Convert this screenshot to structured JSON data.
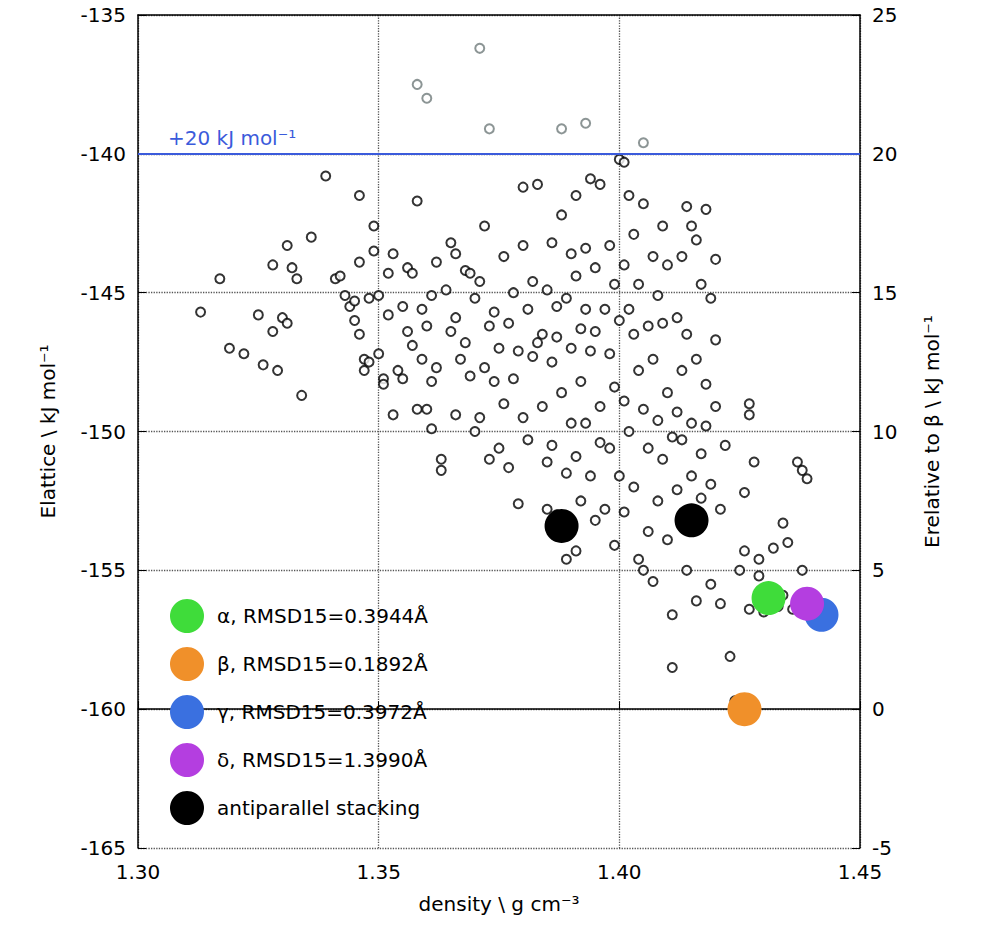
{
  "chart_data": {
    "type": "scatter",
    "x_label": "density \\ g cm⁻³",
    "y_label": "Elattice \\ kJ mol⁻¹",
    "y2_label": "Erelative to β \\ kJ mol⁻¹",
    "xlim": [
      1.3,
      1.45
    ],
    "xticks": [
      {
        "value": 1.3,
        "label": "1.30"
      },
      {
        "value": 1.35,
        "label": "1.35"
      },
      {
        "value": 1.4,
        "label": "1.40"
      },
      {
        "value": 1.45,
        "label": "1.45"
      }
    ],
    "ylim": [
      -165,
      -135
    ],
    "yticks": [
      -165,
      -160,
      -155,
      -150,
      -145,
      -140,
      -135
    ],
    "y2lim": [
      -5,
      25
    ],
    "y2ticks": [
      -5,
      0,
      5,
      10,
      15,
      20,
      25
    ],
    "grid": true,
    "legend": "lower left",
    "reference_lines": [
      {
        "y": -140,
        "label": "+20 kJ mol⁻¹",
        "color": "#3b5bdb"
      }
    ],
    "series": [
      {
        "color": "#000000",
        "marker": "open",
        "values": [
          [
            1.313,
            -145.7
          ],
          [
            1.317,
            -144.5
          ],
          [
            1.319,
            -147.0
          ],
          [
            1.322,
            -147.2
          ],
          [
            1.325,
            -145.8
          ],
          [
            1.326,
            -147.6
          ],
          [
            1.328,
            -146.4
          ],
          [
            1.328,
            -144.0
          ],
          [
            1.329,
            -147.8
          ],
          [
            1.33,
            -145.9
          ],
          [
            1.331,
            -146.1
          ],
          [
            1.331,
            -143.3
          ],
          [
            1.332,
            -144.1
          ],
          [
            1.333,
            -144.5
          ],
          [
            1.334,
            -148.7
          ],
          [
            1.336,
            -143.0
          ],
          [
            1.339,
            -140.8
          ],
          [
            1.341,
            -144.5
          ],
          [
            1.342,
            -144.4
          ],
          [
            1.343,
            -145.1
          ],
          [
            1.344,
            -145.5
          ],
          [
            1.345,
            -146.0
          ],
          [
            1.345,
            -145.3
          ],
          [
            1.346,
            -141.5
          ],
          [
            1.346,
            -143.9
          ],
          [
            1.346,
            -146.5
          ],
          [
            1.347,
            -147.4
          ],
          [
            1.347,
            -147.8
          ],
          [
            1.348,
            -147.5
          ],
          [
            1.348,
            -145.2
          ],
          [
            1.349,
            -143.5
          ],
          [
            1.349,
            -142.6
          ],
          [
            1.35,
            -145.1
          ],
          [
            1.35,
            -147.2
          ],
          [
            1.351,
            -148.1
          ],
          [
            1.351,
            -148.3
          ],
          [
            1.352,
            -144.3
          ],
          [
            1.352,
            -145.8
          ],
          [
            1.353,
            -143.6
          ],
          [
            1.353,
            -149.4
          ],
          [
            1.354,
            -147.8
          ],
          [
            1.355,
            -148.1
          ],
          [
            1.355,
            -145.5
          ],
          [
            1.356,
            -144.1
          ],
          [
            1.356,
            -146.4
          ],
          [
            1.357,
            -144.3
          ],
          [
            1.357,
            -146.9
          ],
          [
            1.358,
            -141.7
          ],
          [
            1.358,
            -149.2
          ],
          [
            1.359,
            -147.4
          ],
          [
            1.359,
            -145.6
          ],
          [
            1.36,
            -149.2
          ],
          [
            1.36,
            -146.2
          ],
          [
            1.361,
            -145.1
          ],
          [
            1.361,
            -148.2
          ],
          [
            1.361,
            -149.9
          ],
          [
            1.362,
            -143.9
          ],
          [
            1.362,
            -147.7
          ],
          [
            1.363,
            -151.0
          ],
          [
            1.363,
            -151.4
          ],
          [
            1.364,
            -144.9
          ],
          [
            1.365,
            -143.2
          ],
          [
            1.365,
            -146.4
          ],
          [
            1.366,
            -143.6
          ],
          [
            1.366,
            -145.9
          ],
          [
            1.366,
            -149.4
          ],
          [
            1.367,
            -147.4
          ],
          [
            1.368,
            -144.2
          ],
          [
            1.368,
            -146.8
          ],
          [
            1.369,
            -144.3
          ],
          [
            1.369,
            -148.0
          ],
          [
            1.37,
            -150.0
          ],
          [
            1.37,
            -145.2
          ],
          [
            1.371,
            -144.6
          ],
          [
            1.371,
            -149.5
          ],
          [
            1.372,
            -142.6
          ],
          [
            1.372,
            -147.7
          ],
          [
            1.373,
            -146.2
          ],
          [
            1.373,
            -151.0
          ],
          [
            1.374,
            -148.2
          ],
          [
            1.374,
            -145.7
          ],
          [
            1.375,
            -147.0
          ],
          [
            1.375,
            -150.6
          ],
          [
            1.376,
            -143.7
          ],
          [
            1.376,
            -149.0
          ],
          [
            1.377,
            -146.1
          ],
          [
            1.377,
            -151.3
          ],
          [
            1.378,
            -145.0
          ],
          [
            1.378,
            -148.1
          ],
          [
            1.379,
            -147.1
          ],
          [
            1.379,
            -152.6
          ],
          [
            1.38,
            -143.3
          ],
          [
            1.38,
            -149.5
          ],
          [
            1.38,
            -141.2
          ],
          [
            1.381,
            -145.6
          ],
          [
            1.381,
            -150.3
          ],
          [
            1.382,
            -147.3
          ],
          [
            1.382,
            -144.6
          ],
          [
            1.383,
            -141.1
          ],
          [
            1.383,
            -146.8
          ],
          [
            1.384,
            -146.5
          ],
          [
            1.384,
            -149.1
          ],
          [
            1.385,
            -144.9
          ],
          [
            1.385,
            -151.1
          ],
          [
            1.385,
            -152.8
          ],
          [
            1.386,
            -143.2
          ],
          [
            1.386,
            -147.5
          ],
          [
            1.386,
            -150.5
          ],
          [
            1.387,
            -145.5
          ],
          [
            1.387,
            -146.6
          ],
          [
            1.387,
            -153.0
          ],
          [
            1.388,
            -142.2
          ],
          [
            1.388,
            -148.6
          ],
          [
            1.389,
            -145.2
          ],
          [
            1.389,
            -151.5
          ],
          [
            1.389,
            -154.6
          ],
          [
            1.39,
            -143.6
          ],
          [
            1.39,
            -147.0
          ],
          [
            1.39,
            -149.7
          ],
          [
            1.391,
            -141.5
          ],
          [
            1.391,
            -144.4
          ],
          [
            1.391,
            -150.9
          ],
          [
            1.391,
            -154.3
          ],
          [
            1.392,
            -146.3
          ],
          [
            1.392,
            -148.2
          ],
          [
            1.392,
            -152.5
          ],
          [
            1.393,
            -143.4
          ],
          [
            1.393,
            -145.6
          ],
          [
            1.393,
            -149.7
          ],
          [
            1.394,
            -140.9
          ],
          [
            1.394,
            -147.1
          ],
          [
            1.394,
            -151.6
          ],
          [
            1.395,
            -144.1
          ],
          [
            1.395,
            -146.4
          ],
          [
            1.395,
            -153.2
          ],
          [
            1.396,
            -141.1
          ],
          [
            1.396,
            -149.1
          ],
          [
            1.396,
            -150.4
          ],
          [
            1.397,
            -145.6
          ],
          [
            1.397,
            -152.8
          ],
          [
            1.398,
            -143.3
          ],
          [
            1.398,
            -147.2
          ],
          [
            1.398,
            -150.6
          ],
          [
            1.399,
            -144.7
          ],
          [
            1.399,
            -148.4
          ],
          [
            1.399,
            -154.1
          ],
          [
            1.4,
            -140.2
          ],
          [
            1.4,
            -146.0
          ],
          [
            1.4,
            -151.6
          ],
          [
            1.401,
            -140.3
          ],
          [
            1.401,
            -144.0
          ],
          [
            1.401,
            -148.9
          ],
          [
            1.401,
            -152.9
          ],
          [
            1.402,
            -141.5
          ],
          [
            1.402,
            -145.6
          ],
          [
            1.402,
            -150.0
          ],
          [
            1.403,
            -142.9
          ],
          [
            1.403,
            -146.5
          ],
          [
            1.403,
            -152.0
          ],
          [
            1.404,
            -144.7
          ],
          [
            1.404,
            -147.8
          ],
          [
            1.404,
            -154.6
          ],
          [
            1.405,
            -141.8
          ],
          [
            1.405,
            -149.2
          ],
          [
            1.405,
            -155.0
          ],
          [
            1.406,
            -146.2
          ],
          [
            1.406,
            -150.6
          ],
          [
            1.406,
            -153.6
          ],
          [
            1.407,
            -143.7
          ],
          [
            1.407,
            -147.4
          ],
          [
            1.407,
            -155.4
          ],
          [
            1.408,
            -145.1
          ],
          [
            1.408,
            -149.6
          ],
          [
            1.408,
            -152.5
          ],
          [
            1.409,
            -142.6
          ],
          [
            1.409,
            -146.1
          ],
          [
            1.409,
            -151.0
          ],
          [
            1.41,
            -144.0
          ],
          [
            1.41,
            -148.6
          ],
          [
            1.41,
            -153.9
          ],
          [
            1.411,
            -150.2
          ],
          [
            1.411,
            -156.6
          ],
          [
            1.411,
            -158.5
          ],
          [
            1.412,
            -145.9
          ],
          [
            1.412,
            -149.3
          ],
          [
            1.412,
            -152.1
          ],
          [
            1.413,
            -143.7
          ],
          [
            1.413,
            -147.8
          ],
          [
            1.413,
            -150.3
          ],
          [
            1.414,
            -141.9
          ],
          [
            1.414,
            -146.5
          ],
          [
            1.414,
            -155.0
          ],
          [
            1.415,
            -142.6
          ],
          [
            1.415,
            -149.7
          ],
          [
            1.415,
            -151.6
          ],
          [
            1.416,
            -143.1
          ],
          [
            1.416,
            -147.4
          ],
          [
            1.416,
            -156.1
          ],
          [
            1.417,
            -144.7
          ],
          [
            1.417,
            -150.8
          ],
          [
            1.417,
            -152.4
          ],
          [
            1.418,
            -142.0
          ],
          [
            1.418,
            -148.3
          ],
          [
            1.418,
            -149.8
          ],
          [
            1.419,
            -145.2
          ],
          [
            1.419,
            -151.9
          ],
          [
            1.419,
            -155.5
          ],
          [
            1.42,
            -143.8
          ],
          [
            1.42,
            -146.7
          ],
          [
            1.42,
            -149.1
          ],
          [
            1.421,
            -152.8
          ],
          [
            1.421,
            -156.2
          ],
          [
            1.422,
            -150.5
          ],
          [
            1.423,
            -158.1
          ],
          [
            1.424,
            -159.7
          ],
          [
            1.425,
            -160.0
          ],
          [
            1.425,
            -155.0
          ],
          [
            1.426,
            -152.2
          ],
          [
            1.426,
            -154.3
          ],
          [
            1.427,
            -149.0
          ],
          [
            1.427,
            -149.4
          ],
          [
            1.427,
            -156.4
          ],
          [
            1.428,
            -151.1
          ],
          [
            1.429,
            -154.6
          ],
          [
            1.429,
            -155.2
          ],
          [
            1.43,
            -156.5
          ],
          [
            1.431,
            -156.0
          ],
          [
            1.432,
            -154.2
          ],
          [
            1.433,
            -156.3
          ],
          [
            1.434,
            -155.9
          ],
          [
            1.434,
            -153.3
          ],
          [
            1.435,
            -154.0
          ],
          [
            1.436,
            -156.4
          ],
          [
            1.437,
            -151.1
          ],
          [
            1.438,
            -151.4
          ],
          [
            1.438,
            -155.0
          ],
          [
            1.439,
            -156.1
          ],
          [
            1.439,
            -151.7
          ],
          [
            1.441,
            -156.6
          ]
        ]
      },
      {
        "color": "#6f7b7b",
        "marker": "open",
        "values": [
          [
            1.371,
            -136.2
          ],
          [
            1.358,
            -137.5
          ],
          [
            1.36,
            -138.0
          ],
          [
            1.373,
            -139.1
          ],
          [
            1.388,
            -139.1
          ],
          [
            1.393,
            -138.9
          ],
          [
            1.405,
            -139.6
          ]
        ]
      },
      {
        "name": "α, RMSD15=0.3944Å",
        "color": "#3fdc3a",
        "marker": "filled",
        "values": [
          [
            1.431,
            -156.0
          ]
        ]
      },
      {
        "name": "β, RMSD15=0.1892Å",
        "color": "#f0902a",
        "marker": "filled",
        "values": [
          [
            1.426,
            -160.0
          ]
        ]
      },
      {
        "name": "γ, RMSD15=0.3972Å",
        "color": "#3a70e0",
        "marker": "filled",
        "values": [
          [
            1.442,
            -156.6
          ]
        ]
      },
      {
        "name": "δ, RMSD15=1.3990Å",
        "color": "#b43ee0",
        "marker": "filled",
        "values": [
          [
            1.439,
            -156.2
          ]
        ]
      },
      {
        "name": "antiparallel stacking",
        "color": "#000000",
        "marker": "filled",
        "values": [
          [
            1.388,
            -153.4
          ],
          [
            1.415,
            -153.2
          ]
        ]
      }
    ]
  }
}
